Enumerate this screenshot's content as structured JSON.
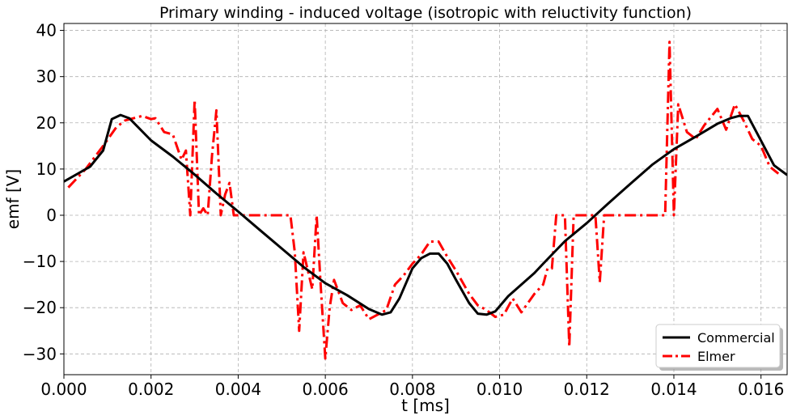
{
  "chart_data": {
    "type": "line",
    "title": "Primary winding - induced voltage (isotropic with reluctivity function)",
    "xlabel": "t [ms]",
    "ylabel": "emf [V]",
    "xlim": [
      0.0,
      0.0166
    ],
    "ylim": [
      -34.5,
      41.5
    ],
    "xticks": [
      0.0,
      0.002,
      0.004,
      0.006,
      0.008,
      0.01,
      0.012,
      0.014,
      0.016
    ],
    "xtick_labels": [
      "0.000",
      "0.002",
      "0.004",
      "0.006",
      "0.008",
      "0.010",
      "0.012",
      "0.014",
      "0.016"
    ],
    "yticks": [
      -30,
      -20,
      -10,
      0,
      10,
      20,
      30,
      40
    ],
    "ytick_labels": [
      "−30",
      "−20",
      "−10",
      "0",
      "10",
      "20",
      "30",
      "40"
    ],
    "grid": true,
    "legend_position": "bottom-right",
    "series": [
      {
        "name": "Commercial",
        "color": "#000000",
        "style": "solid",
        "x": [
          0.0,
          0.0006,
          0.0009,
          0.0011,
          0.0013,
          0.0015,
          0.002,
          0.0025,
          0.003,
          0.0035,
          0.004,
          0.0045,
          0.005,
          0.0055,
          0.006,
          0.0065,
          0.007,
          0.0073,
          0.0075,
          0.0077,
          0.008,
          0.0082,
          0.0084,
          0.0086,
          0.0088,
          0.009,
          0.0093,
          0.0095,
          0.0097,
          0.0099,
          0.0102,
          0.0108,
          0.011,
          0.0115,
          0.012,
          0.0125,
          0.013,
          0.0135,
          0.014,
          0.0145,
          0.015,
          0.0153,
          0.0155,
          0.0157,
          0.0163,
          0.0166
        ],
        "y": [
          7.3,
          10.5,
          14.0,
          20.8,
          21.7,
          21.0,
          16.2,
          12.7,
          8.8,
          4.7,
          0.8,
          -3.2,
          -7.2,
          -11.2,
          -14.7,
          -17.3,
          -20.3,
          -21.5,
          -21.0,
          -18.0,
          -11.5,
          -9.3,
          -8.3,
          -8.3,
          -10.5,
          -14.0,
          -19.0,
          -21.3,
          -21.5,
          -20.8,
          -17.5,
          -12.5,
          -10.5,
          -5.6,
          -1.7,
          2.6,
          6.8,
          10.9,
          14.3,
          17.0,
          19.8,
          21.0,
          21.5,
          21.5,
          10.8,
          8.7
        ]
      },
      {
        "name": "Elmer",
        "color": "#ff0000",
        "style": "dashdot",
        "x": [
          0.0001,
          0.0005,
          0.0009,
          0.0012,
          0.0014,
          0.0016,
          0.0018,
          0.002,
          0.0021,
          0.0023,
          0.0025,
          0.0027,
          0.0028,
          0.0029,
          0.003,
          0.0031,
          0.0032,
          0.0033,
          0.0034,
          0.0035,
          0.0036,
          0.0037,
          0.0038,
          0.0039,
          0.004,
          0.0045,
          0.005,
          0.0052,
          0.0053,
          0.0054,
          0.0055,
          0.0056,
          0.0057,
          0.0058,
          0.0059,
          0.006,
          0.0061,
          0.0062,
          0.0064,
          0.0066,
          0.0068,
          0.007,
          0.0072,
          0.0074,
          0.0076,
          0.0078,
          0.008,
          0.0082,
          0.0084,
          0.0086,
          0.0088,
          0.009,
          0.0093,
          0.0095,
          0.0097,
          0.0099,
          0.0101,
          0.0103,
          0.0105,
          0.0108,
          0.011,
          0.0111,
          0.0112,
          0.0113,
          0.0114,
          0.0115,
          0.0116,
          0.0117,
          0.0118,
          0.012,
          0.0121,
          0.0122,
          0.0123,
          0.0124,
          0.0125,
          0.013,
          0.0135,
          0.0137,
          0.0138,
          0.0139,
          0.014,
          0.0141,
          0.0143,
          0.0145,
          0.0147,
          0.015,
          0.0152,
          0.0154,
          0.0156,
          0.0158,
          0.016,
          0.0162,
          0.0164
        ],
        "y": [
          6.0,
          10.0,
          15.0,
          19.0,
          20.5,
          21.0,
          21.5,
          20.8,
          21.0,
          18.0,
          17.5,
          12.0,
          14.0,
          0.0,
          25.0,
          0.0,
          1.5,
          0.0,
          13.0,
          22.7,
          0.0,
          4.5,
          7.0,
          0.0,
          0.0,
          0.0,
          0.0,
          0.0,
          -8.0,
          -25.0,
          -8.0,
          -12.0,
          -16.0,
          0.0,
          -16.0,
          -31.0,
          -20.0,
          -14.0,
          -19.0,
          -20.5,
          -19.5,
          -22.5,
          -21.5,
          -20.5,
          -15.0,
          -13.0,
          -10.5,
          -8.5,
          -5.7,
          -5.7,
          -9.0,
          -12.0,
          -17.0,
          -19.5,
          -20.5,
          -22.0,
          -21.5,
          -18.0,
          -21.0,
          -17.0,
          -15.0,
          -11.5,
          -11.5,
          0.0,
          0.0,
          0.0,
          -28.5,
          0.0,
          0.0,
          0.0,
          0.0,
          0.0,
          -14.5,
          0.0,
          0.0,
          0.0,
          0.0,
          0.0,
          0.0,
          37.5,
          0.0,
          24.0,
          18.0,
          16.5,
          19.5,
          23.0,
          18.5,
          24.0,
          20.5,
          16.5,
          15.0,
          10.5,
          9.0
        ]
      }
    ]
  }
}
